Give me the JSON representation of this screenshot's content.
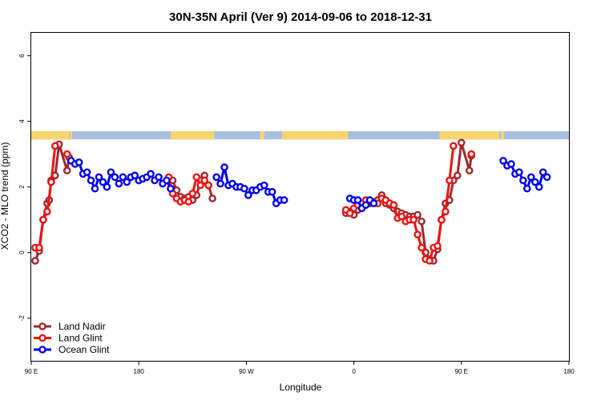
{
  "chart_data": {
    "type": "line",
    "title": "30N-35N April (Ver 9)   2014-09-06 to 2018-12-31",
    "xlabel": "Longitude",
    "ylabel": "XCO2 - MLO trend (ppm)",
    "xlim": [
      -90,
      180
    ],
    "ylim": [
      -3.3,
      6.7
    ],
    "x_ticks": [
      {
        "value": -90,
        "label": "90 E"
      },
      {
        "value": -36,
        "label": "180"
      },
      {
        "value": 18,
        "label": "90 W"
      },
      {
        "value": 72,
        "label": "0"
      },
      {
        "value": 126,
        "label": "90 E"
      },
      {
        "value": 180,
        "label": "180"
      }
    ],
    "y_ticks": [
      {
        "value": -2,
        "label": "-2"
      },
      {
        "value": 0,
        "label": "0"
      },
      {
        "value": 2,
        "label": "2"
      },
      {
        "value": 4,
        "label": "4"
      },
      {
        "value": 6,
        "label": "6"
      }
    ],
    "grid": false,
    "legend_position": "bottom-left",
    "land_mask_band": {
      "y_range": [
        3.45,
        3.7
      ],
      "land_color": "#f9d56e",
      "ocean_color": "#a9bfdf",
      "land_ranges": [
        [
          -90,
          -71
        ],
        [
          -70.5,
          -69.5
        ],
        [
          -20,
          2
        ],
        [
          25,
          27
        ],
        [
          36,
          69
        ],
        [
          115,
          145
        ],
        [
          146,
          147.5
        ]
      ]
    },
    "series": [
      {
        "name": "Land Nadir",
        "color": "#a0282c",
        "points": [
          [
            -88,
            -0.25
          ],
          [
            -86,
            0.05
          ],
          [
            -84,
            1.0
          ],
          [
            -82,
            1.5
          ],
          [
            -81,
            1.6
          ],
          [
            -80,
            2.2
          ],
          [
            -78,
            2.35
          ],
          [
            -76,
            3.3
          ],
          [
            -72,
            2.5
          ],
          [
            -71,
            2.9
          ],
          [
            -19,
            2.2
          ],
          [
            -17,
            1.9
          ],
          [
            -15,
            1.7
          ],
          [
            -13,
            1.65
          ],
          [
            -11,
            1.7
          ],
          [
            -9,
            1.6
          ],
          [
            -7,
            1.75
          ],
          [
            -5,
            2.2
          ],
          [
            -3,
            2.35
          ],
          [
            -1,
            2.05
          ],
          [
            1,
            1.65
          ],
          [
            68,
            1.2
          ],
          [
            70,
            1.25
          ],
          [
            72,
            1.15
          ],
          [
            74,
            1.3
          ],
          [
            76,
            1.4
          ],
          [
            78,
            1.45
          ],
          [
            80,
            1.5
          ],
          [
            82,
            1.55
          ],
          [
            84,
            1.6
          ],
          [
            86,
            1.75
          ],
          [
            88,
            1.5
          ],
          [
            90,
            1.45
          ],
          [
            92,
            1.35
          ],
          [
            94,
            1.25
          ],
          [
            96,
            1.2
          ],
          [
            98,
            1.15
          ],
          [
            100,
            1.1
          ],
          [
            102,
            1.1
          ],
          [
            104,
            1.15
          ],
          [
            106,
            0.95
          ],
          [
            108,
            0.0
          ],
          [
            110,
            -0.2
          ],
          [
            112,
            -0.25
          ],
          [
            114,
            0.1
          ],
          [
            116,
            1.0
          ],
          [
            118,
            1.5
          ],
          [
            120,
            1.6
          ],
          [
            122,
            2.2
          ],
          [
            124,
            2.35
          ],
          [
            126,
            3.35
          ],
          [
            130,
            2.5
          ],
          [
            131,
            2.95
          ]
        ]
      },
      {
        "name": "Land Glint",
        "color": "#ee1111",
        "points": [
          [
            -88,
            0.15
          ],
          [
            -86,
            0.15
          ],
          [
            -84,
            1.0
          ],
          [
            -82,
            1.25
          ],
          [
            -80,
            2.15
          ],
          [
            -78,
            3.25
          ],
          [
            -72,
            3.0
          ],
          [
            -21,
            2.3
          ],
          [
            -19,
            1.8
          ],
          [
            -17,
            1.65
          ],
          [
            -15,
            1.55
          ],
          [
            -13,
            1.6
          ],
          [
            -11,
            1.55
          ],
          [
            -9,
            1.8
          ],
          [
            -7,
            2.3
          ],
          [
            -5,
            2.05
          ],
          [
            -3,
            2.2
          ],
          [
            -1,
            2.05
          ],
          [
            68,
            1.3
          ],
          [
            70,
            1.2
          ],
          [
            72,
            1.35
          ],
          [
            74,
            1.45
          ],
          [
            76,
            1.5
          ],
          [
            78,
            1.6
          ],
          [
            80,
            1.55
          ],
          [
            82,
            1.5
          ],
          [
            84,
            1.5
          ],
          [
            86,
            1.65
          ],
          [
            88,
            1.6
          ],
          [
            90,
            1.5
          ],
          [
            92,
            1.45
          ],
          [
            94,
            1.05
          ],
          [
            96,
            1.1
          ],
          [
            98,
            0.95
          ],
          [
            100,
            1.0
          ],
          [
            102,
            1.0
          ],
          [
            104,
            0.55
          ],
          [
            106,
            0.15
          ],
          [
            108,
            -0.2
          ],
          [
            110,
            -0.25
          ],
          [
            112,
            0.15
          ],
          [
            114,
            0.2
          ],
          [
            116,
            1.0
          ],
          [
            118,
            1.25
          ],
          [
            120,
            2.2
          ],
          [
            122,
            3.25
          ],
          [
            131,
            3.0
          ]
        ]
      },
      {
        "name": "Ocean Glint",
        "color": "#0000ee",
        "points": [
          [
            -70,
            2.8
          ],
          [
            -68,
            2.7
          ],
          [
            -66,
            2.75
          ],
          [
            -64,
            2.4
          ],
          [
            -62,
            2.45
          ],
          [
            -60,
            2.2
          ],
          [
            -58,
            1.95
          ],
          [
            -56,
            2.3
          ],
          [
            -54,
            2.15
          ],
          [
            -52,
            2.0
          ],
          [
            -50,
            2.45
          ],
          [
            -48,
            2.3
          ],
          [
            -46,
            2.1
          ],
          [
            -44,
            2.3
          ],
          [
            -42,
            2.15
          ],
          [
            -40,
            2.3
          ],
          [
            -38,
            2.35
          ],
          [
            -36,
            2.2
          ],
          [
            -34,
            2.25
          ],
          [
            -32,
            2.3
          ],
          [
            -30,
            2.4
          ],
          [
            -28,
            2.2
          ],
          [
            -26,
            2.3
          ],
          [
            -24,
            2.1
          ],
          [
            -22,
            2.2
          ],
          [
            -20,
            1.95
          ],
          [
            3,
            2.3
          ],
          [
            5,
            2.1
          ],
          [
            7,
            2.6
          ],
          [
            9,
            2.05
          ],
          [
            11,
            2.1
          ],
          [
            13,
            2.0
          ],
          [
            15,
            2.0
          ],
          [
            17,
            1.95
          ],
          [
            19,
            1.75
          ],
          [
            21,
            1.9
          ],
          [
            23,
            1.9
          ],
          [
            25,
            2.0
          ],
          [
            27,
            2.05
          ],
          [
            29,
            1.85
          ],
          [
            31,
            1.85
          ],
          [
            33,
            1.5
          ],
          [
            35,
            1.6
          ],
          [
            37,
            1.6
          ],
          [
            70,
            1.65
          ],
          [
            72,
            1.6
          ],
          [
            74,
            1.6
          ],
          [
            76,
            1.35
          ],
          [
            78,
            1.45
          ],
          [
            80,
            1.6
          ],
          [
            82,
            1.5
          ],
          [
            147,
            2.8
          ],
          [
            149,
            2.65
          ],
          [
            151,
            2.7
          ],
          [
            153,
            2.4
          ],
          [
            155,
            2.45
          ],
          [
            157,
            2.2
          ],
          [
            159,
            1.95
          ],
          [
            161,
            2.3
          ],
          [
            163,
            2.15
          ],
          [
            165,
            2.0
          ],
          [
            167,
            2.45
          ],
          [
            169,
            2.3
          ]
        ]
      }
    ]
  }
}
